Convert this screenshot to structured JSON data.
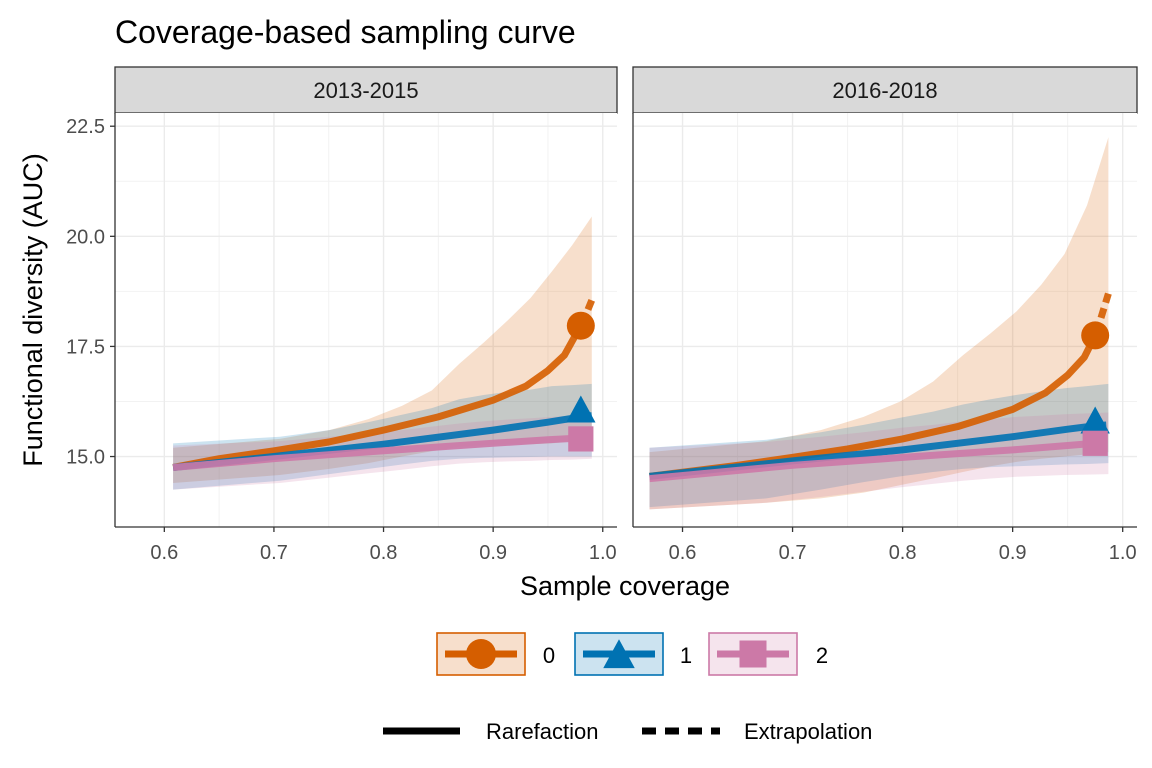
{
  "chart_data": {
    "type": "line",
    "title": "Coverage-based sampling curve",
    "xlabel": "Sample coverage",
    "ylabel": "Functional diversity (AUC)",
    "legend_position": "bottom",
    "grid": true,
    "colors": {
      "0": "#D55E00",
      "1": "#0072B2",
      "2": "#CC79A7"
    },
    "linetype_legend": [
      "Rarefaction",
      "Extrapolation"
    ],
    "series_legend": [
      {
        "name": "0",
        "shape": "circle"
      },
      {
        "name": "1",
        "shape": "triangle"
      },
      {
        "name": "2",
        "shape": "square"
      }
    ],
    "panels": [
      {
        "label": "2013-2015",
        "xlim": [
          0.555,
          1.013
        ],
        "ylim": [
          13.4,
          22.8
        ],
        "xticks": [
          0.6,
          0.7,
          0.8,
          0.9,
          1.0
        ],
        "xtick_labels": [
          "0.6",
          "0.7",
          "0.8",
          "0.9",
          "1.0"
        ],
        "yticks": [
          15.0,
          17.5,
          20.0,
          22.5
        ],
        "ytick_labels": [
          "15.0",
          "17.5",
          "20.0",
          "22.5"
        ],
        "series": [
          {
            "name": "0",
            "observed": {
              "x": 0.98,
              "y": 17.97
            },
            "rarefaction": {
              "x": [
                0.608,
                0.65,
                0.7,
                0.75,
                0.8,
                0.85,
                0.9,
                0.93,
                0.95,
                0.965,
                0.98
              ],
              "y": [
                14.75,
                14.95,
                15.13,
                15.33,
                15.6,
                15.9,
                16.28,
                16.6,
                16.95,
                17.3,
                17.97
              ]
            },
            "extrapolation": {
              "x": [
                0.981,
                0.99
              ],
              "y": [
                18.0,
                18.55
              ]
            },
            "lower": [
              14.4,
              14.58,
              14.72,
              14.85,
              15.0,
              15.12,
              15.22,
              15.26,
              15.27,
              15.28,
              15.3,
              15.35,
              15.4
            ],
            "upper": [
              15.2,
              15.4,
              15.6,
              15.85,
              16.15,
              16.5,
              17.1,
              17.6,
              18.1,
              18.6,
              19.2,
              19.8,
              20.45
            ]
          },
          {
            "name": "1",
            "observed": {
              "x": 0.98,
              "y": 16.03
            },
            "rarefaction": {
              "x": [
                0.608,
                0.7,
                0.8,
                0.9,
                0.95,
                0.98
              ],
              "y": [
                14.75,
                15.0,
                15.28,
                15.6,
                15.78,
                15.9
              ]
            },
            "extrapolation": {
              "x": [
                0.981,
                0.99
              ],
              "y": [
                15.9,
                15.93
              ]
            },
            "lower": [
              14.25,
              14.45,
              14.6,
              14.72,
              14.82,
              14.9,
              14.95,
              14.97,
              14.98,
              14.99,
              15.0,
              15.0,
              15.0
            ],
            "upper": [
              15.3,
              15.45,
              15.6,
              15.78,
              15.95,
              16.1,
              16.3,
              16.4,
              16.47,
              16.52,
              16.6,
              16.62,
              16.65
            ]
          },
          {
            "name": "2",
            "observed": {
              "x": 0.98,
              "y": 15.4
            },
            "rarefaction": {
              "x": [
                0.608,
                0.7,
                0.8,
                0.9,
                0.95,
                0.98
              ],
              "y": [
                14.75,
                14.95,
                15.13,
                15.3,
                15.38,
                15.42
              ]
            },
            "extrapolation": {
              "x": [
                0.981,
                0.99
              ],
              "y": [
                15.42,
                15.44
              ]
            },
            "lower": [
              14.25,
              14.4,
              14.52,
              14.62,
              14.7,
              14.78,
              14.84,
              14.87,
              14.89,
              14.9,
              14.92,
              14.93,
              14.95
            ],
            "upper": [
              15.25,
              15.35,
              15.45,
              15.52,
              15.6,
              15.68,
              15.75,
              15.8,
              15.84,
              15.87,
              15.9,
              15.93,
              15.95
            ]
          }
        ]
      },
      {
        "label": "2016-2018",
        "xlim": [
          0.555,
          1.013
        ],
        "ylim": [
          13.4,
          22.8
        ],
        "xticks": [
          0.6,
          0.7,
          0.8,
          0.9,
          1.0
        ],
        "xtick_labels": [
          "0.6",
          "0.7",
          "0.8",
          "0.9",
          "1.0"
        ],
        "yticks": [
          15.0,
          17.5,
          20.0,
          22.5
        ],
        "ytick_labels": [
          "15.0",
          "17.5",
          "20.0",
          "22.5"
        ],
        "series": [
          {
            "name": "0",
            "observed": {
              "x": 0.975,
              "y": 17.75
            },
            "rarefaction": {
              "x": [
                0.57,
                0.65,
                0.7,
                0.75,
                0.8,
                0.85,
                0.9,
                0.93,
                0.95,
                0.965,
                0.975
              ],
              "y": [
                14.55,
                14.8,
                14.98,
                15.17,
                15.4,
                15.68,
                16.07,
                16.45,
                16.85,
                17.25,
                17.75
              ]
            },
            "extrapolation": {
              "x": [
                0.976,
                0.987
              ],
              "y": [
                17.8,
                18.7
              ]
            },
            "lower": [
              13.8,
              13.95,
              14.05,
              14.18,
              14.35,
              14.5,
              14.65,
              14.78,
              14.88,
              14.95,
              15.0,
              15.05,
              15.1
            ],
            "upper": [
              15.1,
              15.35,
              15.6,
              15.9,
              16.25,
              16.7,
              17.3,
              17.8,
              18.3,
              18.9,
              19.6,
              20.7,
              22.25
            ]
          },
          {
            "name": "1",
            "observed": {
              "x": 0.975,
              "y": 15.78
            },
            "rarefaction": {
              "x": [
                0.57,
                0.7,
                0.8,
                0.9,
                0.95,
                0.975
              ],
              "y": [
                14.55,
                14.9,
                15.15,
                15.45,
                15.62,
                15.7
              ]
            },
            "extrapolation": {
              "x": [
                0.976,
                0.987
              ],
              "y": [
                15.7,
                15.72
              ]
            },
            "lower": [
              13.85,
              14.05,
              14.25,
              14.42,
              14.55,
              14.65,
              14.72,
              14.76,
              14.78,
              14.8,
              14.82,
              14.83,
              14.85
            ],
            "upper": [
              15.2,
              15.38,
              15.55,
              15.72,
              15.88,
              16.02,
              16.18,
              16.3,
              16.4,
              16.48,
              16.55,
              16.6,
              16.65
            ]
          },
          {
            "name": "2",
            "observed": {
              "x": 0.975,
              "y": 15.3
            },
            "rarefaction": {
              "x": [
                0.57,
                0.7,
                0.8,
                0.9,
                0.95,
                0.975
              ],
              "y": [
                14.5,
                14.8,
                14.98,
                15.15,
                15.25,
                15.3
              ]
            },
            "extrapolation": {
              "x": [
                0.976,
                0.987
              ],
              "y": [
                15.3,
                15.32
              ]
            },
            "lower": [
              13.8,
              13.95,
              14.08,
              14.2,
              14.3,
              14.38,
              14.45,
              14.5,
              14.54,
              14.56,
              14.58,
              14.59,
              14.6
            ],
            "upper": [
              15.2,
              15.33,
              15.45,
              15.55,
              15.65,
              15.72,
              15.8,
              15.85,
              15.9,
              15.93,
              15.96,
              15.98,
              16.0
            ]
          }
        ]
      }
    ]
  }
}
